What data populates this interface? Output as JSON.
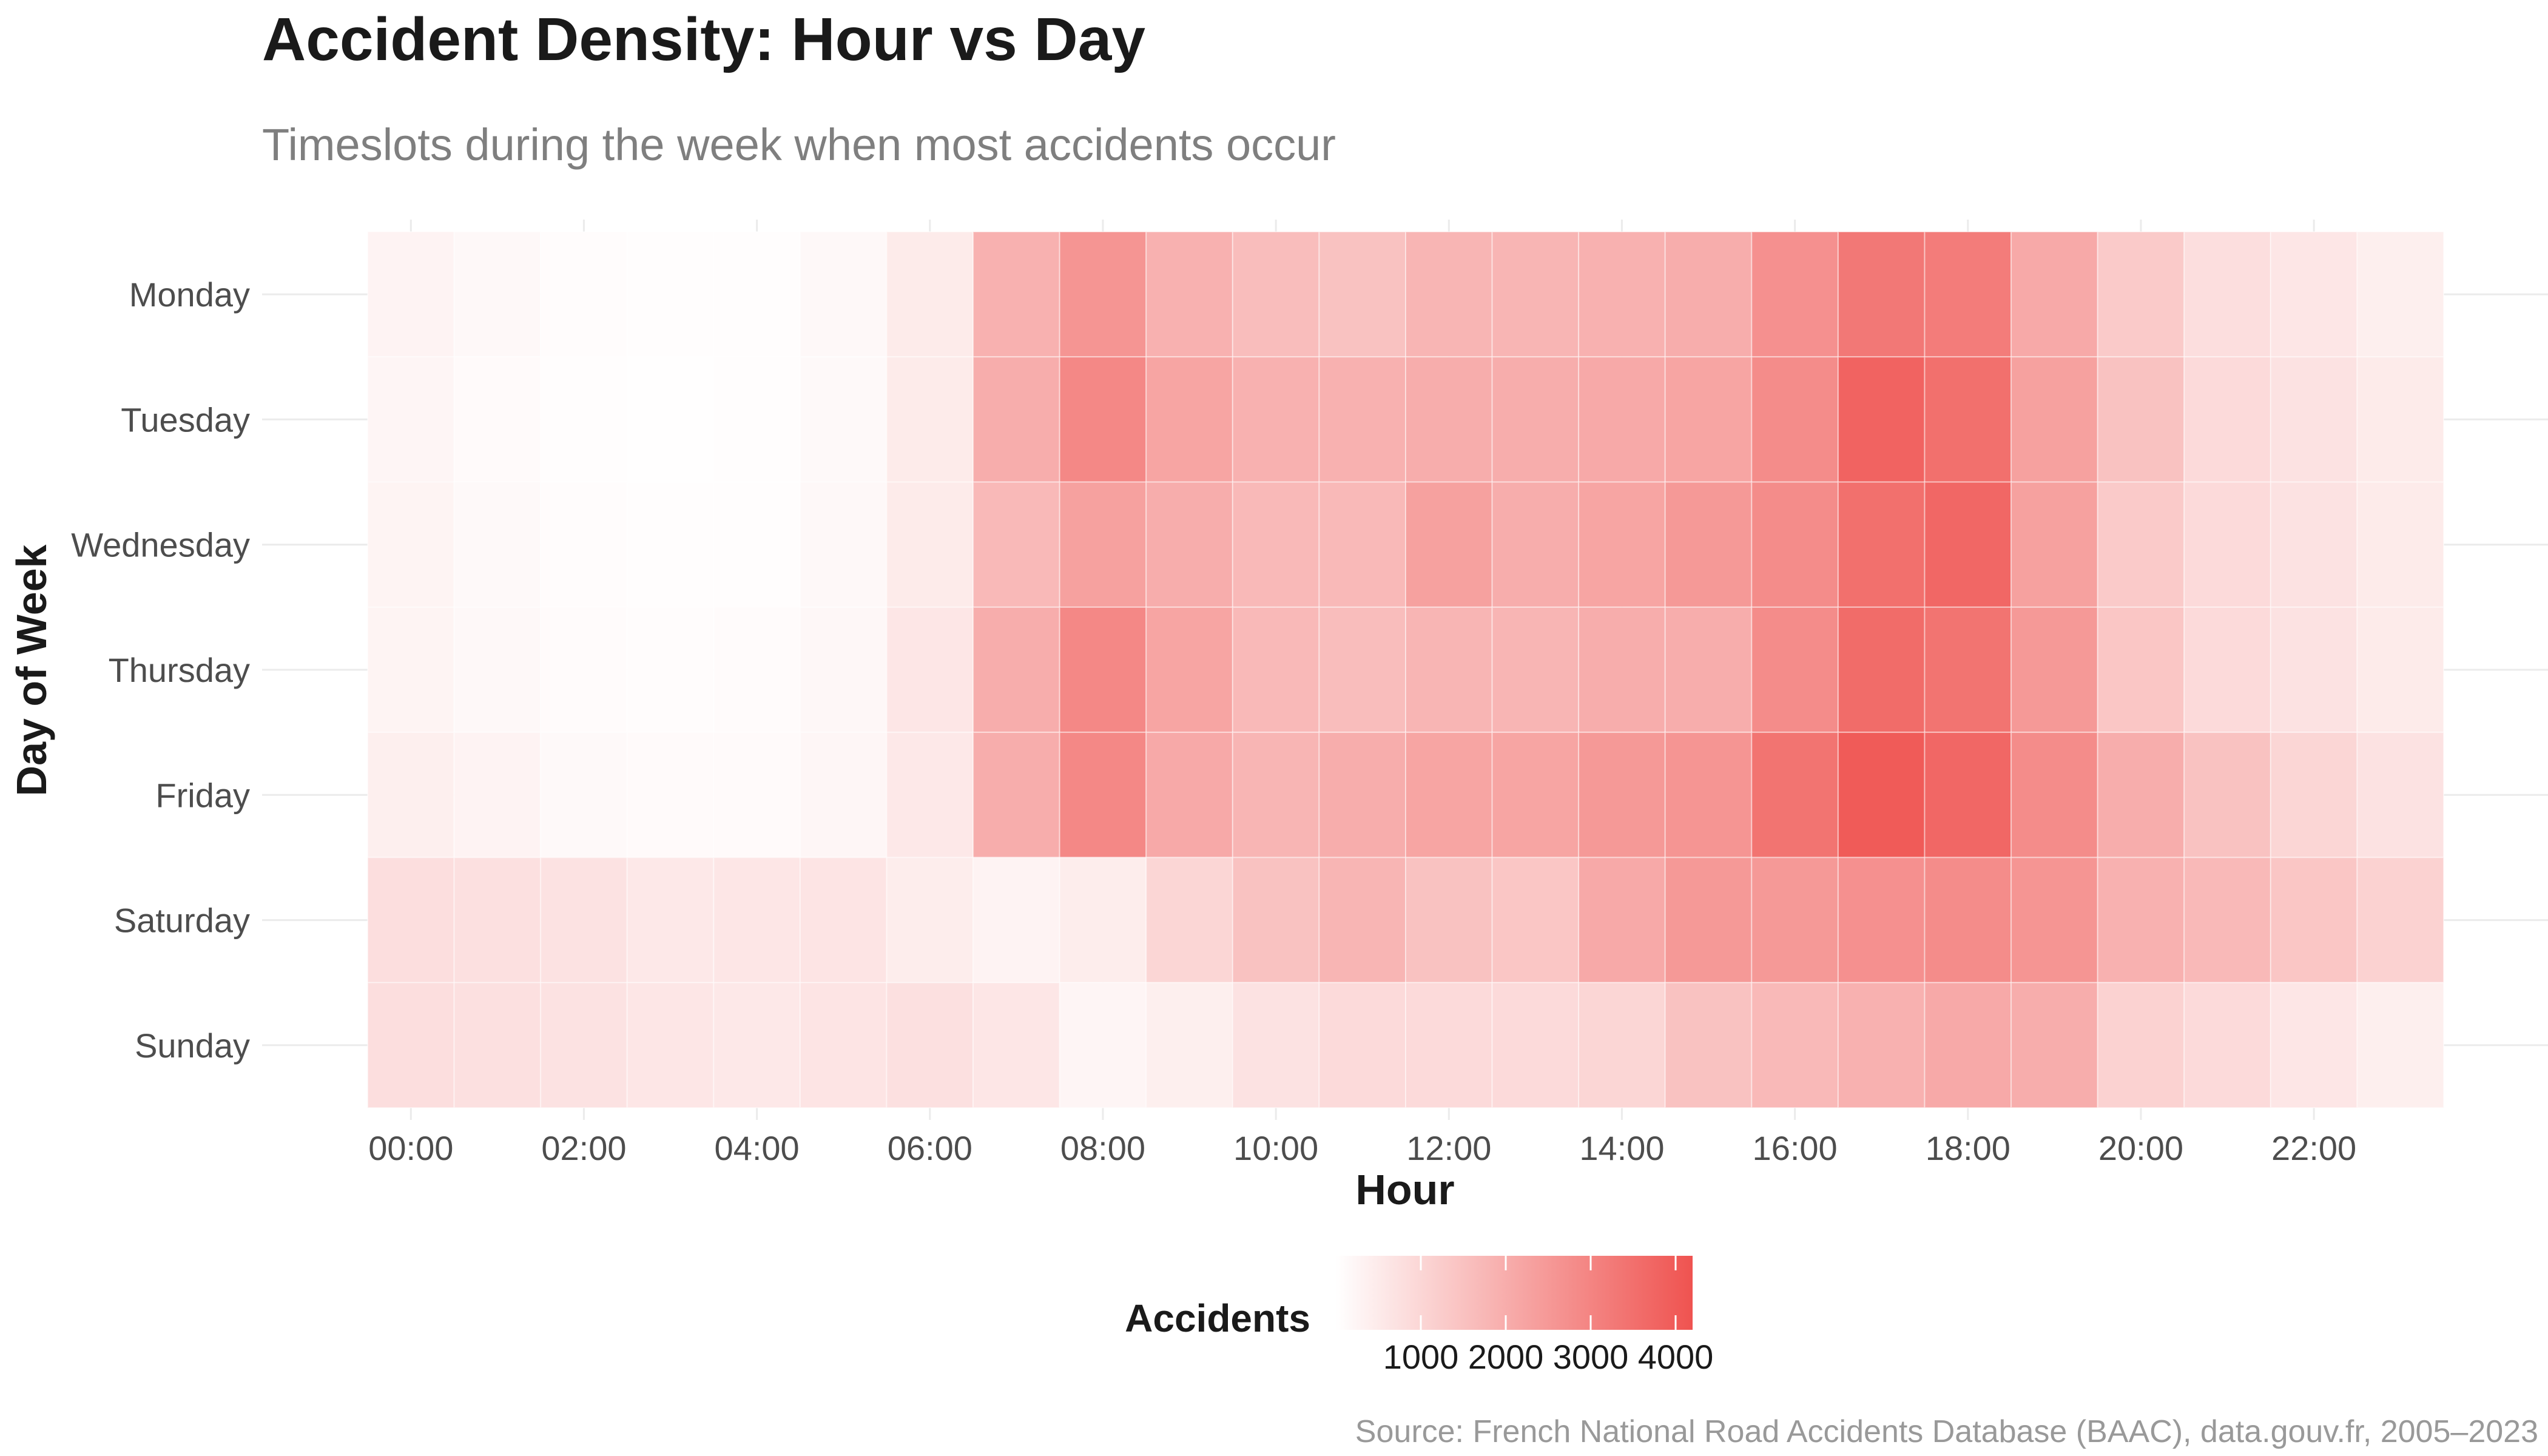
{
  "chart_data": {
    "type": "heatmap",
    "title": "Accident Density: Hour vs Day",
    "subtitle": "Timeslots during the week when most accidents occur",
    "xlabel": "Hour",
    "ylabel": "Day of Week",
    "x_ticks": [
      "00:00",
      "02:00",
      "04:00",
      "06:00",
      "08:00",
      "10:00",
      "12:00",
      "14:00",
      "16:00",
      "18:00",
      "20:00",
      "22:00"
    ],
    "hours": [
      "00:00",
      "01:00",
      "02:00",
      "03:00",
      "04:00",
      "05:00",
      "06:00",
      "07:00",
      "08:00",
      "09:00",
      "10:00",
      "11:00",
      "12:00",
      "13:00",
      "14:00",
      "15:00",
      "16:00",
      "17:00",
      "18:00",
      "19:00",
      "20:00",
      "21:00",
      "22:00",
      "23:00"
    ],
    "days": [
      "Monday",
      "Tuesday",
      "Wednesday",
      "Thursday",
      "Friday",
      "Saturday",
      "Sunday"
    ],
    "values": [
      [
        300,
        180,
        80,
        40,
        60,
        160,
        500,
        1900,
        2600,
        1900,
        1600,
        1500,
        1800,
        1800,
        1900,
        2000,
        2700,
        3300,
        3200,
        2100,
        1300,
        800,
        600,
        400
      ],
      [
        250,
        120,
        60,
        30,
        50,
        140,
        500,
        2000,
        2900,
        2200,
        1900,
        1900,
        2000,
        2000,
        2100,
        2200,
        2800,
        3800,
        3500,
        2300,
        1500,
        900,
        700,
        500
      ],
      [
        280,
        150,
        70,
        40,
        60,
        160,
        500,
        1700,
        2300,
        2000,
        1700,
        1700,
        2300,
        2000,
        2200,
        2500,
        2800,
        3500,
        3700,
        2300,
        1300,
        900,
        700,
        500
      ],
      [
        280,
        170,
        90,
        70,
        90,
        200,
        600,
        2000,
        2900,
        2200,
        1700,
        1600,
        1800,
        1800,
        2000,
        2000,
        2800,
        3600,
        3400,
        2500,
        1400,
        900,
        700,
        500
      ],
      [
        400,
        300,
        150,
        110,
        130,
        220,
        550,
        2000,
        2900,
        2100,
        1800,
        2000,
        2200,
        2200,
        2500,
        2600,
        3400,
        4000,
        3700,
        2800,
        2000,
        1500,
        1000,
        700
      ],
      [
        800,
        750,
        700,
        550,
        600,
        650,
        450,
        300,
        450,
        1000,
        1500,
        1800,
        1500,
        1400,
        2100,
        2500,
        2500,
        2700,
        2800,
        2600,
        1900,
        1700,
        1400,
        1100
      ],
      [
        800,
        750,
        700,
        600,
        550,
        650,
        750,
        600,
        250,
        400,
        700,
        900,
        900,
        900,
        1000,
        1500,
        1700,
        1900,
        2100,
        2000,
        1100,
        900,
        600,
        400
      ]
    ],
    "legend": {
      "title": "Accidents",
      "ticks": [
        1000,
        2000,
        3000,
        4000
      ],
      "position": "bottom",
      "low_color": "#ffffff",
      "high_color": "#ef5350"
    },
    "grid": true,
    "source": "Source: French National Road Accidents Database (BAAC), data.gouv.fr, 2005–2023"
  }
}
